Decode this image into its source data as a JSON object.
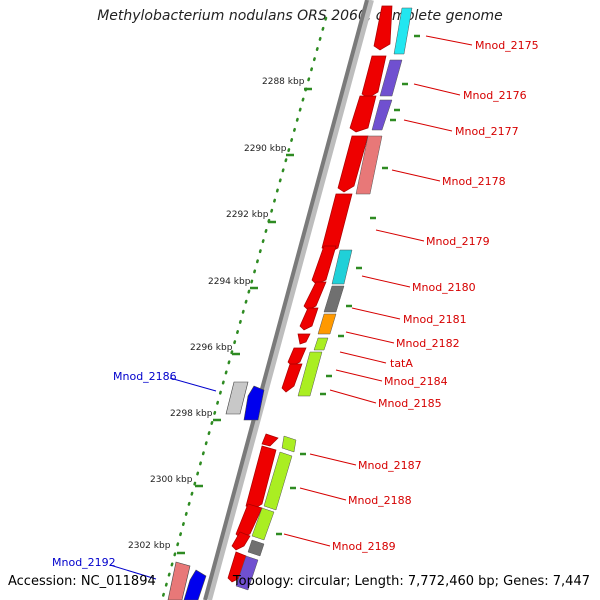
{
  "title": "Methylobacterium nodulans ORS 2060, complete genome",
  "footer": {
    "accession": "Accession: NC_011894",
    "summary": "Topology: circular; Length: 7,772,460 bp; Genes: 7,447"
  },
  "colors": {
    "backbone": "#8c8c8c",
    "kbp_tick": "#2e8b22",
    "label_red": "#d60000",
    "label_blue": "#0000cc"
  },
  "ruler": [
    "2288 kbp",
    "2290 kbp",
    "2292 kbp",
    "2294 kbp",
    "2296 kbp",
    "2298 kbp",
    "2300 kbp",
    "2302 kbp"
  ],
  "right_labels": [
    "Mnod_2175",
    "Mnod_2176",
    "Mnod_2177",
    "Mnod_2178",
    "Mnod_2179",
    "Mnod_2180",
    "Mnod_2181",
    "Mnod_2182",
    "tatA",
    "Mnod_2184",
    "Mnod_2185",
    "Mnod_2187",
    "Mnod_2188",
    "Mnod_2189"
  ],
  "left_labels": [
    "Mnod_2186",
    "Mnod_2192"
  ]
}
